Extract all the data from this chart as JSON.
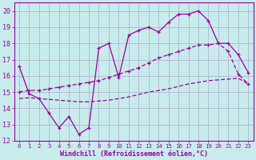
{
  "xlabel": "Windchill (Refroidissement éolien,°C)",
  "bg_color": "#c8ecec",
  "grid_color": "#aaaacc",
  "line_color": "#990099",
  "x_values": [
    0,
    1,
    2,
    3,
    4,
    5,
    6,
    7,
    8,
    9,
    10,
    11,
    12,
    13,
    14,
    15,
    16,
    17,
    18,
    19,
    20,
    21,
    22,
    23
  ],
  "line1": [
    16.6,
    14.9,
    14.6,
    13.7,
    12.8,
    13.5,
    12.4,
    12.8,
    17.7,
    18.0,
    15.9,
    18.5,
    18.8,
    19.0,
    18.7,
    19.3,
    19.8,
    19.8,
    20.0,
    19.4,
    18.0,
    18.0,
    17.3,
    16.2
  ],
  "line2": [
    15.0,
    15.1,
    15.1,
    15.2,
    15.3,
    15.4,
    15.5,
    15.6,
    15.7,
    15.9,
    16.1,
    16.3,
    16.5,
    16.8,
    17.1,
    17.3,
    17.5,
    17.7,
    17.9,
    17.9,
    18.0,
    17.5,
    16.1,
    15.5
  ],
  "line3": [
    14.6,
    14.65,
    14.6,
    14.55,
    14.5,
    14.45,
    14.4,
    14.4,
    14.45,
    14.5,
    14.6,
    14.7,
    14.85,
    15.0,
    15.1,
    15.2,
    15.35,
    15.5,
    15.6,
    15.7,
    15.75,
    15.8,
    15.85,
    15.5
  ],
  "ylim": [
    12,
    20.5
  ],
  "yticks": [
    12,
    13,
    14,
    15,
    16,
    17,
    18,
    19,
    20
  ],
  "xlim": [
    -0.5,
    23.5
  ],
  "xticks": [
    0,
    1,
    2,
    3,
    4,
    5,
    6,
    7,
    8,
    9,
    10,
    11,
    12,
    13,
    14,
    15,
    16,
    17,
    18,
    19,
    20,
    21,
    22,
    23
  ]
}
